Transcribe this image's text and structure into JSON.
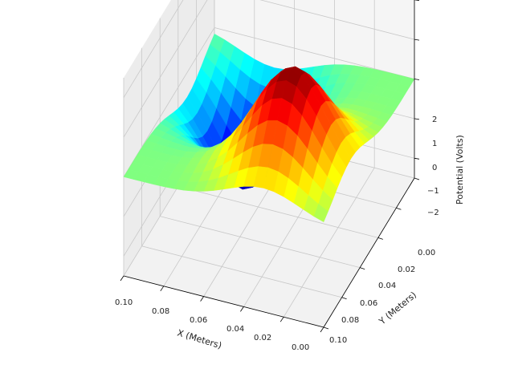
{
  "chart_data": {
    "type": "surface3d",
    "title": "",
    "colormap": "jet",
    "xlabel": "X (Meters)",
    "ylabel": "Y (Meters)",
    "zlabel": "Potential (Volts)",
    "xlim": [
      0.0,
      0.1
    ],
    "ylim": [
      0.0,
      0.1
    ],
    "zlim": [
      -2.5,
      2.5
    ],
    "x_ticks": [
      "0.10",
      "0.08",
      "0.06",
      "0.04",
      "0.02",
      "0.00"
    ],
    "y_ticks": [
      "0.00",
      "0.02",
      "0.04",
      "0.06",
      "0.08",
      "0.10"
    ],
    "z_ticks": [
      "2",
      "1",
      "0",
      "−1",
      "−2"
    ],
    "grid": true,
    "grid_size": [
      21,
      21
    ],
    "features": [
      {
        "name": "peak",
        "x": 0.03,
        "y": 0.03,
        "z": 2.5
      },
      {
        "name": "trough",
        "x": 0.07,
        "y": 0.07,
        "z": -2.5
      }
    ]
  }
}
